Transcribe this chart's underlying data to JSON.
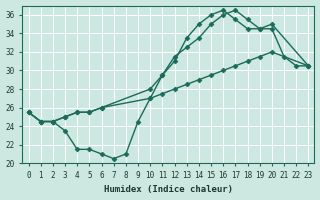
{
  "xlabel": "Humidex (Indice chaleur)",
  "xlim": [
    -0.5,
    23.5
  ],
  "ylim": [
    20,
    37
  ],
  "yticks": [
    20,
    22,
    24,
    26,
    28,
    30,
    32,
    34,
    36
  ],
  "xticks": [
    0,
    1,
    2,
    3,
    4,
    5,
    6,
    7,
    8,
    9,
    10,
    11,
    12,
    13,
    14,
    15,
    16,
    17,
    18,
    19,
    20,
    21,
    22,
    23
  ],
  "bg_color": "#cce8e0",
  "line_color": "#1a6b5a",
  "line1_x": [
    0,
    1,
    2,
    3,
    4,
    5,
    6,
    7,
    8,
    9,
    10,
    11,
    12,
    13,
    14,
    15,
    16,
    17,
    18,
    19,
    20,
    21,
    22,
    23
  ],
  "line1_y": [
    25.5,
    24.5,
    24.5,
    23.5,
    21.5,
    21.5,
    21.0,
    20.5,
    21.0,
    24.5,
    27.0,
    29.5,
    31.5,
    32.5,
    33.5,
    35.0,
    36.0,
    36.5,
    35.5,
    34.5,
    34.5,
    31.5,
    30.5,
    30.5
  ],
  "line2_x": [
    0,
    1,
    2,
    3,
    4,
    5,
    6,
    10,
    11,
    12,
    13,
    14,
    15,
    16,
    17,
    18,
    19,
    20,
    23
  ],
  "line2_y": [
    25.5,
    24.5,
    24.5,
    25.0,
    25.5,
    25.5,
    26.0,
    28.0,
    29.5,
    31.0,
    33.5,
    35.0,
    36.0,
    36.5,
    35.5,
    34.5,
    34.5,
    35.0,
    30.5
  ],
  "line3_x": [
    0,
    1,
    2,
    3,
    4,
    5,
    6,
    10,
    11,
    12,
    13,
    14,
    15,
    16,
    17,
    18,
    19,
    20,
    23
  ],
  "line3_y": [
    25.5,
    24.5,
    24.5,
    25.0,
    25.5,
    25.5,
    26.0,
    27.0,
    27.5,
    28.0,
    28.5,
    29.0,
    29.5,
    30.0,
    30.5,
    31.0,
    31.5,
    32.0,
    30.5
  ]
}
